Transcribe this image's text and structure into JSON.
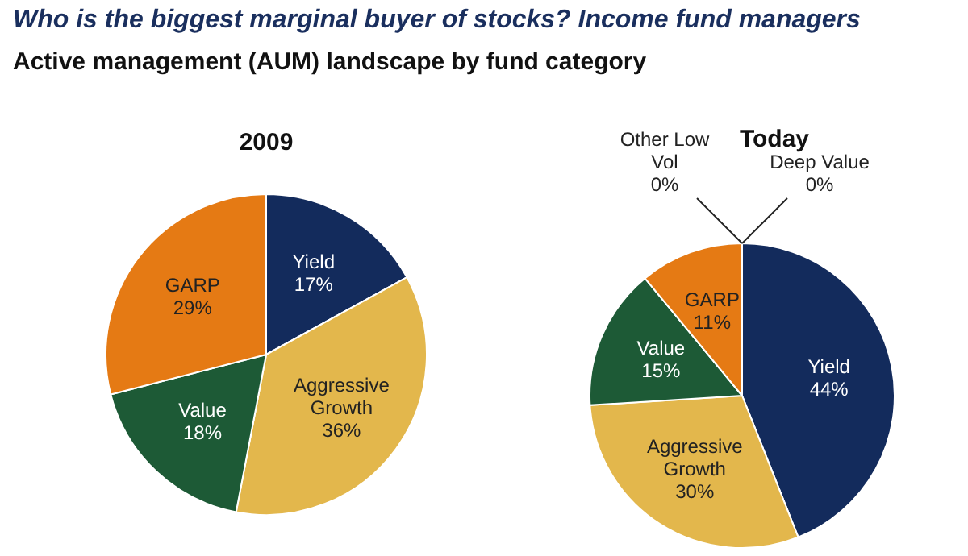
{
  "chart_data": [
    {
      "type": "pie",
      "title": "2009",
      "annotations": [
        "Who is the biggest marginal buyer of stocks? Income fund managers",
        "Active management (AUM) landscape by fund category"
      ],
      "categories": [
        "Yield",
        "Aggressive Growth",
        "Value",
        "GARP"
      ],
      "values": [
        17,
        36,
        18,
        29
      ],
      "value_labels": [
        "17%",
        "36%",
        "18%",
        "29%"
      ],
      "colors": [
        "#132b5c",
        "#e3b74c",
        "#1d5a36",
        "#e57a14"
      ]
    },
    {
      "type": "pie",
      "title": "Today",
      "categories": [
        "Yield",
        "Aggressive Growth",
        "Value",
        "GARP",
        "Other Low Vol",
        "Deep Value"
      ],
      "values": [
        44,
        30,
        15,
        11,
        0,
        0
      ],
      "value_labels": [
        "44%",
        "30%",
        "15%",
        "11%",
        "0%",
        "0%"
      ],
      "colors": [
        "#132b5c",
        "#e3b74c",
        "#1d5a36",
        "#e57a14",
        "#8a8a8a",
        "#5a5a5a"
      ]
    }
  ]
}
